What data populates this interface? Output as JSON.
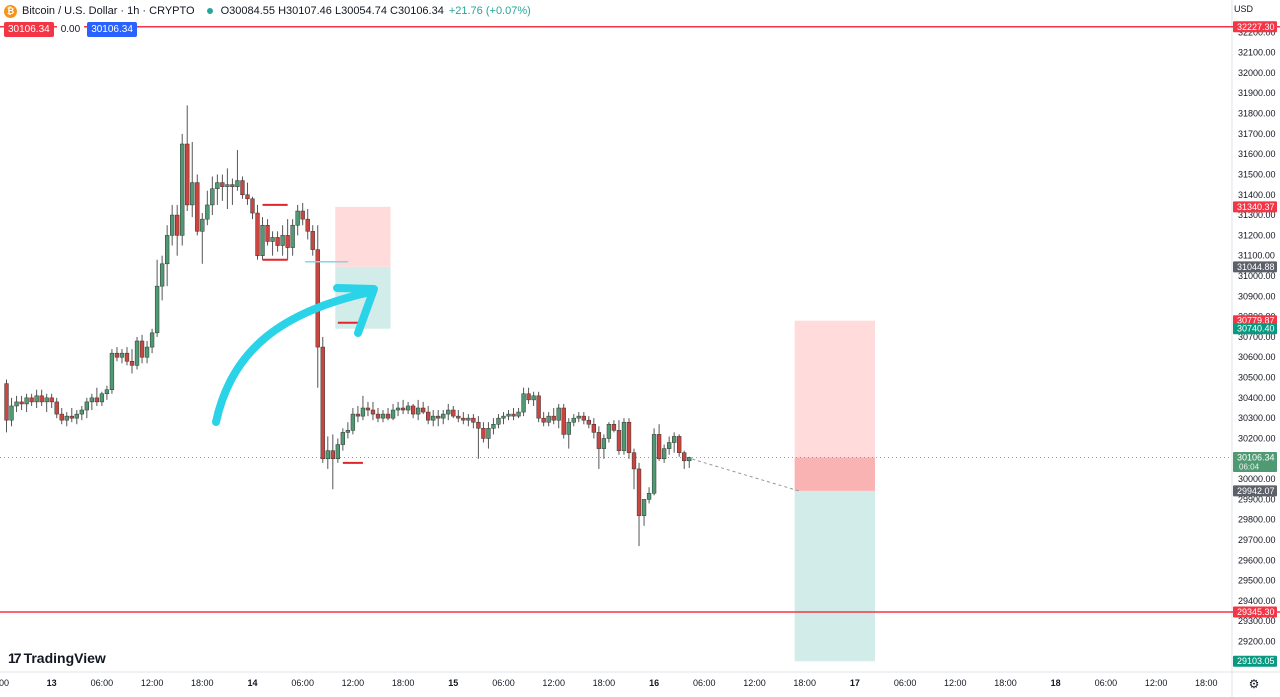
{
  "header": {
    "symbol": "Bitcoin / U.S. Dollar · 1h · CRYPTO",
    "logo_glyph": "₿",
    "ohlc": "O30084.55 H30107.46 L30054.74 C30106.34",
    "change": "+21.76 (+0.07%)"
  },
  "price_pills": {
    "sell": "30106.34",
    "spread": "0.00",
    "buy": "30106.34"
  },
  "currency": "USD",
  "brand": {
    "mark": "17",
    "name": "TradingView"
  },
  "icons": {
    "settings": "gear-icon"
  },
  "colors": {
    "up": "#26a69a",
    "down": "#ef5350",
    "line_red": "#f23645",
    "arrow": "#2ad3e8",
    "risk_zone": "#ffd7d7",
    "reward_zone": "#cdeae7"
  },
  "chart_data": {
    "type": "candlestick",
    "timeframe": "1h",
    "ylim": [
      29050,
      32300
    ],
    "y_ticks": [
      29200,
      29300,
      29400,
      29500,
      29600,
      29700,
      29800,
      29900,
      30000,
      30100,
      30200,
      30300,
      30400,
      30500,
      30600,
      30700,
      30800,
      30900,
      31000,
      31100,
      31200,
      31300,
      31400,
      31500,
      31600,
      31700,
      31800,
      31900,
      32000,
      32100,
      32200
    ],
    "x_ticks": [
      {
        "label": "00",
        "bar": 0
      },
      {
        "label": "13",
        "bar": 9.5
      },
      {
        "label": "06:00",
        "bar": 19.5
      },
      {
        "label": "12:00",
        "bar": 29.5
      },
      {
        "label": "18:00",
        "bar": 39.5
      },
      {
        "label": "14",
        "bar": 49.5
      },
      {
        "label": "06:00",
        "bar": 59.5
      },
      {
        "label": "12:00",
        "bar": 69.5
      },
      {
        "label": "18:00",
        "bar": 79.5
      },
      {
        "label": "15",
        "bar": 89.5
      },
      {
        "label": "06:00",
        "bar": 99.5
      },
      {
        "label": "12:00",
        "bar": 109.5
      },
      {
        "label": "18:00",
        "bar": 119.5
      },
      {
        "label": "16",
        "bar": 129.5
      },
      {
        "label": "06:00",
        "bar": 139.5
      },
      {
        "label": "12:00",
        "bar": 149.5
      },
      {
        "label": "18:00",
        "bar": 159.5
      },
      {
        "label": "17",
        "bar": 169.5
      },
      {
        "label": "06:00",
        "bar": 179.5
      },
      {
        "label": "12:00",
        "bar": 189.5
      },
      {
        "label": "18:00",
        "bar": 199.5
      },
      {
        "label": "18",
        "bar": 209.5
      },
      {
        "label": "06:00",
        "bar": 219.5
      },
      {
        "label": "12:00",
        "bar": 229.5
      },
      {
        "label": "18:00",
        "bar": 239.5
      }
    ],
    "candles": [
      [
        30470,
        30490,
        30230,
        30290
      ],
      [
        30290,
        30400,
        30260,
        30360
      ],
      [
        30360,
        30410,
        30330,
        30380
      ],
      [
        30380,
        30410,
        30340,
        30370
      ],
      [
        30370,
        30420,
        30330,
        30400
      ],
      [
        30400,
        30420,
        30360,
        30380
      ],
      [
        30380,
        30440,
        30350,
        30410
      ],
      [
        30410,
        30440,
        30360,
        30380
      ],
      [
        30380,
        30420,
        30330,
        30400
      ],
      [
        30400,
        30420,
        30350,
        30380
      ],
      [
        30380,
        30400,
        30300,
        30320
      ],
      [
        30320,
        30350,
        30270,
        30290
      ],
      [
        30290,
        30330,
        30260,
        30310
      ],
      [
        30310,
        30350,
        30280,
        30300
      ],
      [
        30300,
        30340,
        30270,
        30320
      ],
      [
        30320,
        30360,
        30290,
        30340
      ],
      [
        30340,
        30400,
        30300,
        30380
      ],
      [
        30380,
        30420,
        30340,
        30400
      ],
      [
        30400,
        30450,
        30360,
        30380
      ],
      [
        30380,
        30430,
        30360,
        30420
      ],
      [
        30420,
        30460,
        30390,
        30440
      ],
      [
        30440,
        30640,
        30420,
        30620
      ],
      [
        30620,
        30650,
        30580,
        30600
      ],
      [
        30600,
        30640,
        30570,
        30620
      ],
      [
        30620,
        30650,
        30560,
        30580
      ],
      [
        30580,
        30640,
        30520,
        30560
      ],
      [
        30560,
        30700,
        30540,
        30680
      ],
      [
        30680,
        30710,
        30570,
        30600
      ],
      [
        30600,
        30680,
        30570,
        30650
      ],
      [
        30650,
        30740,
        30620,
        30720
      ],
      [
        30720,
        31080,
        30700,
        30950
      ],
      [
        30950,
        31100,
        30880,
        31060
      ],
      [
        31060,
        31250,
        30950,
        31200
      ],
      [
        31200,
        31350,
        31150,
        31300
      ],
      [
        31300,
        31350,
        31100,
        31200
      ],
      [
        31200,
        31700,
        31150,
        31650
      ],
      [
        31650,
        31840,
        31320,
        31350
      ],
      [
        31350,
        31660,
        31290,
        31460
      ],
      [
        31460,
        31500,
        31200,
        31220
      ],
      [
        31220,
        31310,
        31060,
        31280
      ],
      [
        31280,
        31420,
        31250,
        31350
      ],
      [
        31350,
        31490,
        31300,
        31430
      ],
      [
        31430,
        31500,
        31350,
        31460
      ],
      [
        31460,
        31500,
        31370,
        31440
      ],
      [
        31440,
        31530,
        31330,
        31450
      ],
      [
        31450,
        31480,
        31350,
        31440
      ],
      [
        31440,
        31620,
        31420,
        31470
      ],
      [
        31470,
        31490,
        31380,
        31400
      ],
      [
        31400,
        31460,
        31350,
        31380
      ],
      [
        31380,
        31390,
        31280,
        31310
      ],
      [
        31310,
        31350,
        31080,
        31100
      ],
      [
        31100,
        31290,
        31080,
        31250
      ],
      [
        31250,
        31280,
        31150,
        31170
      ],
      [
        31170,
        31220,
        31100,
        31190
      ],
      [
        31190,
        31220,
        31120,
        31150
      ],
      [
        31150,
        31250,
        31100,
        31200
      ],
      [
        31200,
        31280,
        31080,
        31140
      ],
      [
        31140,
        31280,
        31100,
        31250
      ],
      [
        31250,
        31350,
        31200,
        31320
      ],
      [
        31320,
        31360,
        31250,
        31280
      ],
      [
        31280,
        31330,
        31180,
        31220
      ],
      [
        31220,
        31250,
        31100,
        31130
      ],
      [
        31130,
        31250,
        30450,
        30650
      ],
      [
        30650,
        30700,
        30080,
        30100
      ],
      [
        30100,
        30210,
        30050,
        30140
      ],
      [
        30140,
        30220,
        29950,
        30100
      ],
      [
        30100,
        30200,
        30080,
        30170
      ],
      [
        30170,
        30250,
        30140,
        30230
      ],
      [
        30230,
        30280,
        30200,
        30240
      ],
      [
        30240,
        30350,
        30220,
        30320
      ],
      [
        30320,
        30360,
        30280,
        30310
      ],
      [
        30310,
        30410,
        30290,
        30350
      ],
      [
        30350,
        30380,
        30310,
        30340
      ],
      [
        30340,
        30380,
        30290,
        30320
      ],
      [
        30320,
        30350,
        30280,
        30300
      ],
      [
        30300,
        30340,
        30280,
        30320
      ],
      [
        30320,
        30350,
        30290,
        30300
      ],
      [
        30300,
        30370,
        30290,
        30340
      ],
      [
        30340,
        30380,
        30310,
        30350
      ],
      [
        30350,
        30390,
        30320,
        30340
      ],
      [
        30340,
        30380,
        30320,
        30360
      ],
      [
        30360,
        30370,
        30300,
        30320
      ],
      [
        30320,
        30390,
        30290,
        30350
      ],
      [
        30350,
        30380,
        30320,
        30330
      ],
      [
        30330,
        30360,
        30270,
        30290
      ],
      [
        30290,
        30340,
        30260,
        30310
      ],
      [
        30310,
        30340,
        30260,
        30300
      ],
      [
        30300,
        30340,
        30270,
        30320
      ],
      [
        30320,
        30370,
        30290,
        30340
      ],
      [
        30340,
        30360,
        30300,
        30310
      ],
      [
        30310,
        30340,
        30280,
        30300
      ],
      [
        30300,
        30330,
        30270,
        30290
      ],
      [
        30290,
        30320,
        30260,
        30300
      ],
      [
        30300,
        30320,
        30250,
        30280
      ],
      [
        30280,
        30310,
        30100,
        30250
      ],
      [
        30250,
        30280,
        30180,
        30200
      ],
      [
        30200,
        30280,
        30150,
        30250
      ],
      [
        30250,
        30300,
        30220,
        30270
      ],
      [
        30270,
        30320,
        30250,
        30300
      ],
      [
        30300,
        30330,
        30270,
        30310
      ],
      [
        30310,
        30340,
        30290,
        30320
      ],
      [
        30320,
        30350,
        30290,
        30310
      ],
      [
        30310,
        30350,
        30300,
        30330
      ],
      [
        30330,
        30450,
        30310,
        30420
      ],
      [
        30420,
        30450,
        30370,
        30390
      ],
      [
        30390,
        30430,
        30360,
        30410
      ],
      [
        30410,
        30430,
        30280,
        30300
      ],
      [
        30300,
        30330,
        30260,
        30280
      ],
      [
        30280,
        30330,
        30260,
        30310
      ],
      [
        30310,
        30350,
        30270,
        30290
      ],
      [
        30290,
        30370,
        30250,
        30350
      ],
      [
        30350,
        30370,
        30200,
        30220
      ],
      [
        30220,
        30300,
        30150,
        30280
      ],
      [
        30280,
        30320,
        30260,
        30300
      ],
      [
        30300,
        30330,
        30280,
        30310
      ],
      [
        30310,
        30330,
        30270,
        30290
      ],
      [
        30290,
        30310,
        30250,
        30270
      ],
      [
        30270,
        30300,
        30200,
        30230
      ],
      [
        30230,
        30260,
        30050,
        30150
      ],
      [
        30150,
        30220,
        30100,
        30200
      ],
      [
        30200,
        30280,
        30180,
        30270
      ],
      [
        30270,
        30290,
        30230,
        30240
      ],
      [
        30240,
        30290,
        30120,
        30140
      ],
      [
        30140,
        30300,
        30120,
        30280
      ],
      [
        30280,
        30300,
        30100,
        30130
      ],
      [
        30130,
        30150,
        29950,
        30050
      ],
      [
        30050,
        30080,
        29670,
        29820
      ],
      [
        29820,
        29900,
        29770,
        29900
      ],
      [
        29900,
        29960,
        29880,
        29930
      ],
      [
        29930,
        30250,
        29920,
        30220
      ],
      [
        30220,
        30270,
        30090,
        30100
      ],
      [
        30100,
        30170,
        30080,
        30150
      ],
      [
        30150,
        30210,
        30120,
        30180
      ],
      [
        30180,
        30230,
        30130,
        30210
      ],
      [
        30210,
        30220,
        30110,
        30130
      ],
      [
        30130,
        30140,
        30050,
        30090
      ],
      [
        30090,
        30110,
        30055,
        30106
      ]
    ],
    "price_labels": [
      {
        "price": 32227.3,
        "label": "32227.30",
        "style": "red"
      },
      {
        "price": 31340.37,
        "label": "31340.37",
        "style": "red"
      },
      {
        "price": 31044.88,
        "label": "31044.88",
        "style": "grey"
      },
      {
        "price": 30779.87,
        "label": "30779.87",
        "style": "red"
      },
      {
        "price": 30740.4,
        "label": "30740.40",
        "style": "teal"
      },
      {
        "price": 30106.34,
        "label": "30106.34",
        "sub": "06:04",
        "style": "green"
      },
      {
        "price": 29942.07,
        "label": "29942.07",
        "style": "grey"
      },
      {
        "price": 29345.3,
        "label": "29345.30",
        "style": "red"
      },
      {
        "price": 29103.05,
        "label": "29103.05",
        "style": "teal"
      }
    ],
    "horizontal_lines": [
      {
        "price": 32227.3
      },
      {
        "price": 29345.3
      }
    ],
    "positions": [
      {
        "type": "short",
        "start_bar": 66,
        "end_bar": 77,
        "stop": 31340.37,
        "entry": 31044.88,
        "target": 30740.4
      },
      {
        "type": "short",
        "start_bar": 157.5,
        "end_bar": 173.5,
        "stop": 30779.87,
        "entry": 29942.07,
        "target": 29103.05,
        "current": 30106.34
      }
    ],
    "consolidation_box": {
      "start_bar": 51.5,
      "end_bar": 56.5,
      "high": 31350,
      "low": 31080
    },
    "wick_marks": [
      {
        "bar": 66.5,
        "to_bar": 70.5,
        "price": 30770
      },
      {
        "bar": 67.5,
        "to_bar": 71.5,
        "price": 30080
      }
    ],
    "support_line": {
      "start_bar": 60,
      "end_bar": 68.5,
      "price": 31070
    },
    "annotation": "curved-arrow"
  }
}
